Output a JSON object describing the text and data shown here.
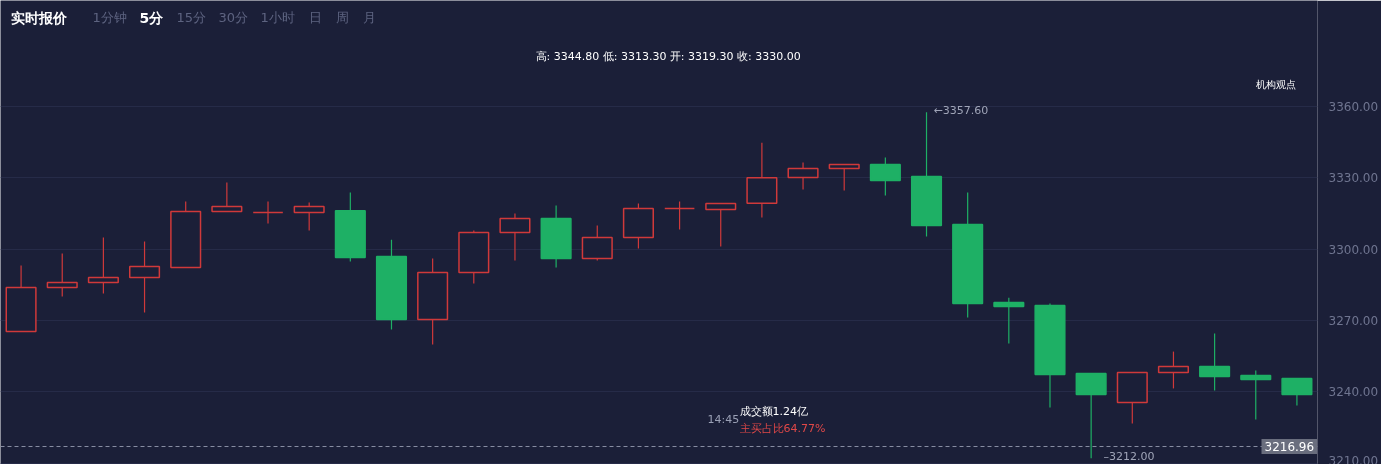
{
  "chart_data": {
    "type": "candlestick",
    "title": "实时报价",
    "categories": [
      null,
      null,
      null,
      null,
      null,
      null,
      null,
      null,
      null,
      null,
      null,
      null,
      null,
      null,
      null,
      null,
      null,
      null,
      null,
      null,
      null,
      null,
      null,
      null,
      null,
      null,
      null,
      null,
      null,
      null,
      null,
      null
    ],
    "ohlc": [
      [
        3265.3,
        3293.1,
        3265.3,
        3283.9
      ],
      [
        3283.9,
        3298.2,
        3280.1,
        3286.0
      ],
      [
        3286.0,
        3304.9,
        3281.3,
        3288.1
      ],
      [
        3288.1,
        3303.2,
        3273.3,
        3292.7
      ],
      [
        3292.3,
        3320.0,
        3292.3,
        3315.8
      ],
      [
        3315.8,
        3328.0,
        3315.8,
        3317.9
      ],
      [
        3315.4,
        3320.0,
        3310.8,
        3315.4
      ],
      [
        3315.4,
        3319.6,
        3307.8,
        3317.9
      ],
      [
        3316.2,
        3323.8,
        3294.8,
        3296.5
      ],
      [
        3296.9,
        3304.0,
        3266.2,
        3270.4
      ],
      [
        3270.4,
        3296.1,
        3259.9,
        3290.2
      ],
      [
        3290.2,
        3307.8,
        3285.5,
        3307.0
      ],
      [
        3307.0,
        3315.0,
        3295.2,
        3312.9
      ],
      [
        3312.9,
        3318.4,
        3292.3,
        3296.1
      ],
      [
        3296.1,
        3309.9,
        3295.2,
        3304.9
      ],
      [
        3304.9,
        3319.2,
        3300.3,
        3317.1
      ],
      [
        3317.1,
        3320.0,
        3308.3,
        3317.1
      ],
      [
        3316.7,
        3319.2,
        3301.1,
        3319.2
      ],
      [
        3319.3,
        3344.8,
        3313.3,
        3330.0
      ],
      [
        3330.1,
        3336.4,
        3325.1,
        3333.9
      ],
      [
        3333.9,
        3335.6,
        3324.7,
        3335.6
      ],
      [
        3335.6,
        3338.5,
        3322.6,
        3328.9
      ],
      [
        3330.6,
        3357.6,
        3305.3,
        3309.9
      ],
      [
        3310.4,
        3323.8,
        3271.2,
        3277.1
      ],
      [
        3277.5,
        3279.6,
        3260.3,
        3275.9
      ],
      [
        3276.3,
        3277.1,
        3233.4,
        3247.3
      ],
      [
        3247.7,
        3247.7,
        3212.0,
        3238.8
      ],
      [
        3235.5,
        3248.1,
        3226.6,
        3248.1
      ],
      [
        3248.1,
        3256.9,
        3241.4,
        3250.6
      ],
      [
        3250.6,
        3264.5,
        3240.5,
        3246.4
      ],
      [
        3246.8,
        3248.9,
        3228.3,
        3245.2
      ],
      [
        3245.6,
        3245.6,
        3234.2,
        3238.8
      ]
    ],
    "colors": [
      "#d0393a",
      "#d0393a",
      "#d0393a",
      "#d0393a",
      "#d0393a",
      "#d0393a",
      "#d0393a",
      "#d0393a",
      "#1eb065",
      "#1eb065",
      "#d0393a",
      "#d0393a",
      "#d0393a",
      "#1eb065",
      "#d0393a",
      "#d0393a",
      "#d0393a",
      "#d0393a",
      "#d0393a",
      "#d0393a",
      "#d0393a",
      "#1eb065",
      "#1eb065",
      "#1eb065",
      "#1eb065",
      "#1eb065",
      "#1eb065",
      "#d0393a",
      "#d0393a",
      "#1eb065",
      "#1eb065",
      "#1eb065"
    ],
    "ylim": [
      3209.4,
      3404.6
    ],
    "yticks": [
      {
        "value": 3210,
        "label": "3210.00"
      },
      {
        "value": 3240,
        "label": "3240.00"
      },
      {
        "value": 3270,
        "label": "3270.00"
      },
      {
        "value": 3300,
        "label": "3300.00"
      },
      {
        "value": 3330,
        "label": "3330.00"
      },
      {
        "value": 3360,
        "label": "3360.00"
      }
    ],
    "grid": "y",
    "tick_labels": "y",
    "ref_lines": [
      {
        "axis": "y",
        "value": 3216.96,
        "label": "3216.96",
        "color": "#8a8fa3",
        "line_style": "dashed"
      }
    ],
    "annotations": [
      "1分钟",
      "5分",
      "15分",
      "30分",
      "1小时",
      "日",
      "周",
      "月",
      "高: 3344.80 低: 3313.30 开: 3319.30 收: 3330.00",
      "14:45",
      "成交额1.24亿",
      "主买占比64.77%",
      "机构观点",
      "←3357.60",
      "–3212.00"
    ]
  }
}
